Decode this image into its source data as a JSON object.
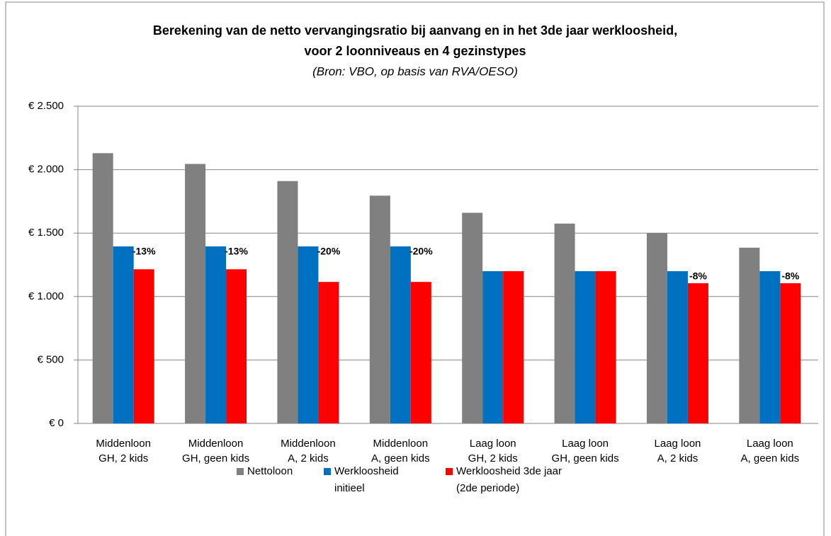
{
  "chart_data": {
    "type": "bar",
    "title": [
      "Berekening van de netto vervangingsratio bij aanvang en in het 3de jaar werkloosheid,",
      "voor 2 loonniveaus en 4 gezinstypes"
    ],
    "subtitle": "(Bron: VBO, op basis van RVA/OESO)",
    "categories": [
      [
        "Middenloon",
        "GH, 2 kids"
      ],
      [
        "Middenloon",
        "GH, geen kids"
      ],
      [
        "Middenloon",
        "A, 2 kids"
      ],
      [
        "Middenloon",
        "A, geen kids"
      ],
      [
        "Laag loon",
        "GH, 2 kids"
      ],
      [
        "Laag loon",
        "GH, geen kids"
      ],
      [
        "Laag loon",
        "A, 2 kids"
      ],
      [
        "Laag loon",
        "A, geen kids"
      ]
    ],
    "series": [
      {
        "name": [
          "Nettoloon"
        ],
        "color": "#808080",
        "values": [
          2130,
          2045,
          1910,
          1795,
          1660,
          1575,
          1500,
          1385
        ]
      },
      {
        "name": [
          "Werkloosheid",
          "initieel"
        ],
        "color": "#0070c0",
        "values": [
          1395,
          1395,
          1395,
          1395,
          1200,
          1200,
          1200,
          1200
        ]
      },
      {
        "name": [
          "Werkloosheid 3de jaar",
          "(2de periode)"
        ],
        "color": "#ff0000",
        "values": [
          1215,
          1215,
          1115,
          1115,
          1200,
          1200,
          1105,
          1105
        ]
      }
    ],
    "annotations": [
      "-13%",
      "-13%",
      "-20%",
      "-20%",
      null,
      null,
      "-8%",
      "-8%"
    ],
    "ylim": [
      0,
      2500
    ],
    "yticks": [
      {
        "value": 0,
        "label": "€ 0"
      },
      {
        "value": 500,
        "label": "€ 500"
      },
      {
        "value": 1000,
        "label": "€ 1.000"
      },
      {
        "value": 1500,
        "label": "€ 1.500"
      },
      {
        "value": 2000,
        "label": "€ 2.000"
      },
      {
        "value": 2500,
        "label": "€ 2.500"
      }
    ],
    "grid": true,
    "legend": "bottom"
  }
}
